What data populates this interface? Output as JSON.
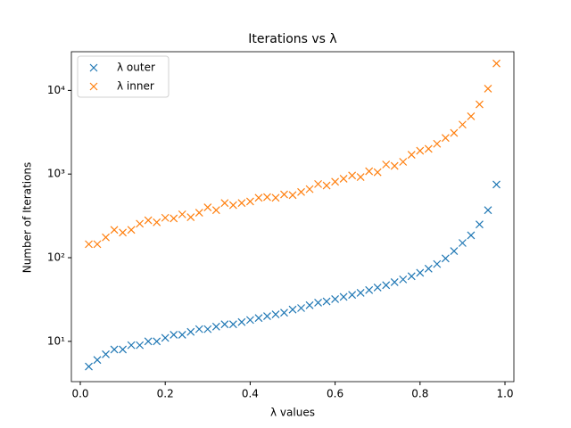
{
  "chart_data": {
    "type": "scatter",
    "title": "Iterations vs λ",
    "x_label": "λ values",
    "y_label": "Number of Iterations",
    "x": [
      0.02,
      0.04,
      0.06,
      0.08,
      0.1,
      0.12,
      0.14,
      0.16,
      0.18,
      0.2,
      0.22,
      0.24,
      0.26,
      0.28,
      0.3,
      0.32,
      0.34,
      0.36,
      0.38,
      0.4,
      0.42,
      0.44,
      0.46,
      0.48,
      0.5,
      0.52,
      0.54,
      0.56,
      0.58,
      0.6,
      0.62,
      0.64,
      0.66,
      0.68,
      0.7,
      0.72,
      0.74,
      0.76,
      0.78,
      0.8,
      0.82,
      0.84,
      0.86,
      0.88,
      0.9,
      0.92,
      0.94,
      0.96,
      0.98
    ],
    "series": [
      {
        "name": "λ outer",
        "color": "#1f77b4",
        "values": [
          5,
          6,
          7,
          8,
          8,
          9,
          9,
          10,
          10,
          11,
          12,
          12,
          13,
          14,
          14,
          15,
          16,
          16,
          17,
          18,
          19,
          20,
          21,
          22,
          24,
          25,
          27,
          29,
          30,
          32,
          34,
          36,
          38,
          41,
          44,
          47,
          51,
          55,
          60,
          66,
          74,
          84,
          98,
          120,
          150,
          185,
          250,
          370,
          750
        ]
      },
      {
        "name": "λ inner",
        "color": "#ff7f0e",
        "values": [
          145,
          145,
          175,
          215,
          200,
          215,
          255,
          280,
          265,
          300,
          295,
          330,
          305,
          345,
          400,
          370,
          450,
          425,
          450,
          470,
          520,
          530,
          520,
          570,
          560,
          610,
          660,
          760,
          730,
          810,
          880,
          960,
          920,
          1080,
          1050,
          1300,
          1250,
          1400,
          1700,
          1900,
          2000,
          2300,
          2700,
          3100,
          3900,
          4900,
          6800,
          10500,
          21000
        ]
      }
    ],
    "xlim": [
      -0.021,
      1.021
    ],
    "ylim": [
      3.3,
      29000
    ],
    "log_y": true,
    "xticks": [
      {
        "value": 0,
        "label": "0.0"
      },
      0.2,
      0.4,
      0.6,
      0.8,
      {
        "value": 1,
        "label": "1.0"
      }
    ],
    "yticks": [
      {
        "value": 10,
        "label": "10¹"
      },
      {
        "value": 100,
        "label": "10²"
      },
      {
        "value": 1000,
        "label": "10³"
      },
      {
        "value": 10000,
        "label": "10⁴"
      }
    ],
    "legend": "upper left",
    "marker": "x"
  }
}
